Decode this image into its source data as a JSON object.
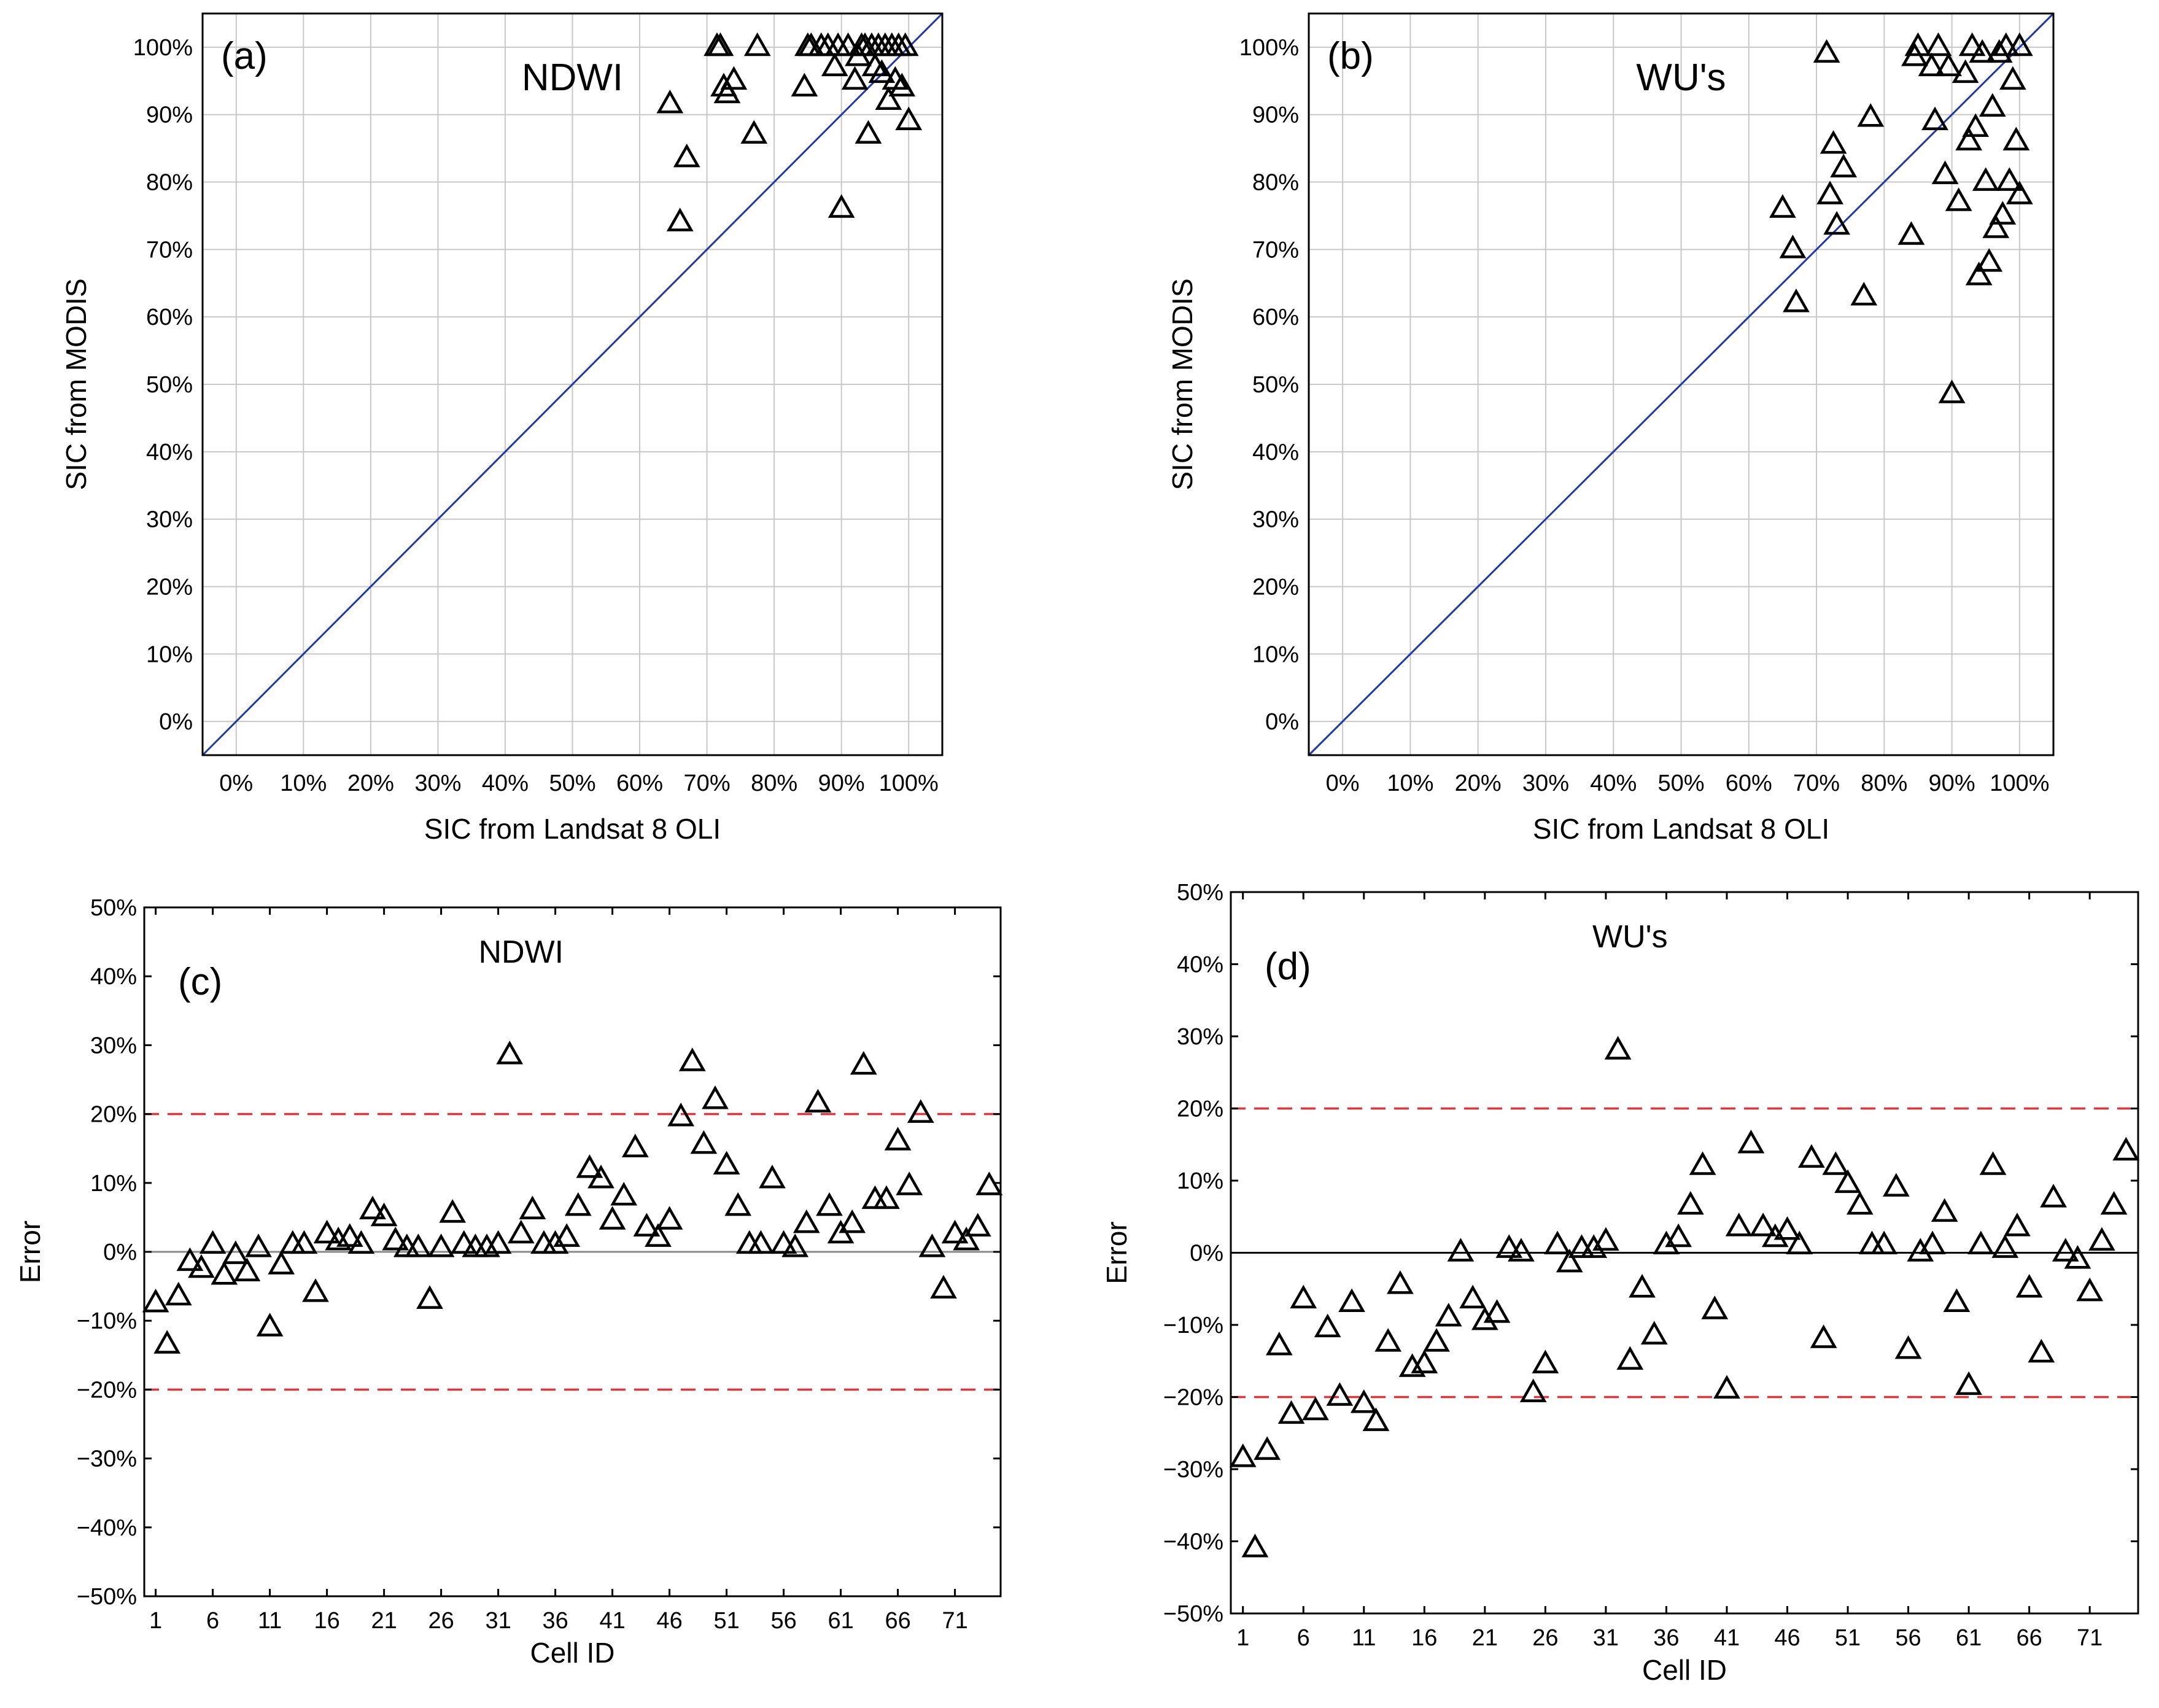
{
  "chart_data": [
    {
      "panel": "a",
      "type": "scatter",
      "panel_label": "(a)",
      "method": "NDWI",
      "xlabel": "SIC from Landsat 8 OLI",
      "ylabel": "SIC from MODIS",
      "xlim": [
        -5,
        105
      ],
      "ylim": [
        -5,
        105
      ],
      "xticks": [
        "0%",
        "10%",
        "20%",
        "30%",
        "40%",
        "50%",
        "60%",
        "70%",
        "80%",
        "90%",
        "100%"
      ],
      "yticks": [
        "0%",
        "10%",
        "20%",
        "30%",
        "40%",
        "50%",
        "60%",
        "70%",
        "80%",
        "90%",
        "100%"
      ],
      "reference_line": "1:1",
      "x": [
        64.5,
        66,
        67,
        71.5,
        72,
        72.5,
        73,
        74,
        77,
        77.5,
        84.5,
        85,
        85.5,
        87,
        88,
        89,
        89.5,
        90,
        91,
        92,
        92.5,
        93,
        93.5,
        94,
        94.5,
        95,
        95.5,
        96,
        96.5,
        97,
        97.5,
        98,
        98.5,
        99,
        99.5,
        100
      ],
      "y": [
        91.5,
        74,
        83.5,
        100,
        100,
        94,
        93,
        95,
        87,
        100,
        94,
        100,
        100,
        100,
        100,
        97,
        100,
        76,
        100,
        95,
        98.5,
        100,
        100,
        87,
        100,
        97,
        100,
        96,
        100,
        92,
        100,
        95,
        100,
        94,
        100,
        89
      ]
    },
    {
      "panel": "b",
      "type": "scatter",
      "panel_label": "(b)",
      "method": "WU's",
      "xlabel": "SIC from Landsat 8 OLI",
      "ylabel": "SIC from MODIS",
      "xlim": [
        -5,
        105
      ],
      "ylim": [
        -5,
        105
      ],
      "xticks": [
        "0%",
        "10%",
        "20%",
        "30%",
        "40%",
        "50%",
        "60%",
        "70%",
        "80%",
        "90%",
        "100%"
      ],
      "yticks": [
        "0%",
        "10%",
        "20%",
        "30%",
        "40%",
        "50%",
        "60%",
        "70%",
        "80%",
        "90%",
        "100%"
      ],
      "reference_line": "1:1",
      "x": [
        65,
        66.5,
        67,
        71.5,
        72,
        72.5,
        73,
        74,
        77,
        78,
        84,
        84.5,
        85,
        87,
        87.5,
        88,
        89,
        89.5,
        90,
        91,
        92,
        92.5,
        93,
        93.5,
        94,
        94.5,
        95,
        95.5,
        96,
        96.5,
        97,
        97.5,
        98,
        98.5,
        99,
        99.5,
        100,
        100
      ],
      "y": [
        76,
        70,
        62,
        99,
        78,
        85.5,
        73.5,
        82,
        63,
        89.5,
        72,
        98.5,
        100,
        97,
        89,
        100,
        81,
        97,
        48.5,
        77,
        96,
        86,
        100,
        88,
        66,
        99,
        80,
        68,
        91,
        73,
        99,
        75,
        100,
        80,
        95,
        86,
        100,
        78
      ]
    },
    {
      "panel": "c",
      "type": "scatter",
      "panel_label": "(c)",
      "method": "NDWI",
      "xlabel": "Cell ID",
      "ylabel": "Error",
      "xlim": [
        0,
        75
      ],
      "ylim": [
        -50,
        50
      ],
      "xticks": [
        "1",
        "6",
        "11",
        "16",
        "21",
        "26",
        "31",
        "36",
        "41",
        "46",
        "51",
        "56",
        "61",
        "66",
        "71"
      ],
      "yticks": [
        "−50%",
        "−40%",
        "−30%",
        "−20%",
        "−10%",
        "0%",
        "10%",
        "20%",
        "30%",
        "40%",
        "50%"
      ],
      "threshold_lines": [
        20,
        -20
      ],
      "zero_line": 0,
      "x": [
        1,
        2,
        3,
        4,
        5,
        6,
        7,
        8,
        9,
        10,
        11,
        12,
        13,
        14,
        15,
        16,
        17,
        18,
        19,
        20,
        21,
        22,
        23,
        24,
        25,
        26,
        27,
        28,
        29,
        30,
        31,
        32,
        33,
        34,
        35,
        36,
        37,
        38,
        39,
        40,
        41,
        42,
        43,
        44,
        45,
        46,
        47,
        48,
        49,
        50,
        51,
        52,
        53,
        54,
        55,
        56,
        57,
        58,
        59,
        60,
        61,
        62,
        63,
        64,
        65,
        66,
        67,
        68,
        69,
        70,
        71,
        72,
        73,
        74
      ],
      "y": [
        -7.5,
        -13.5,
        -6.5,
        -1.5,
        -2.5,
        1,
        -3.5,
        -0.5,
        -3,
        0.5,
        -11,
        -2,
        1,
        1,
        -6,
        2.5,
        1.5,
        2,
        1,
        6,
        5,
        1.5,
        0.5,
        0.5,
        -7,
        0.5,
        5.5,
        1,
        0.5,
        0.5,
        1,
        28.5,
        2.5,
        6,
        1,
        1,
        2,
        6.5,
        12,
        10.5,
        4.5,
        8,
        15,
        3.5,
        2,
        4.5,
        19.5,
        27.5,
        15.5,
        22,
        12.5,
        6.5,
        1,
        1,
        10.5,
        1,
        0.5,
        4,
        21.5,
        6.5,
        2.5,
        4,
        27,
        7.5,
        7.5,
        16,
        9.5,
        20,
        0.5,
        -5.5,
        2.5,
        1.5,
        3.5,
        9.5
      ]
    },
    {
      "panel": "d",
      "type": "scatter",
      "panel_label": "(d)",
      "method": "WU's",
      "xlabel": "Cell ID",
      "ylabel": "Error",
      "xlim": [
        0,
        75
      ],
      "ylim": [
        -50,
        50
      ],
      "xticks": [
        "1",
        "6",
        "11",
        "16",
        "21",
        "26",
        "31",
        "36",
        "41",
        "46",
        "51",
        "56",
        "61",
        "66",
        "71"
      ],
      "yticks": [
        "−50%",
        "−40%",
        "−30%",
        "−20%",
        "−10%",
        "0%",
        "10%",
        "20%",
        "30%",
        "40%",
        "50%"
      ],
      "threshold_lines": [
        20,
        -20
      ],
      "zero_line": 0,
      "x": [
        1,
        2,
        3,
        4,
        5,
        6,
        7,
        8,
        9,
        10,
        11,
        12,
        13,
        14,
        15,
        16,
        17,
        18,
        19,
        20,
        21,
        22,
        23,
        24,
        25,
        26,
        27,
        28,
        29,
        30,
        31,
        32,
        33,
        34,
        35,
        36,
        37,
        38,
        39,
        40,
        41,
        42,
        43,
        44,
        45,
        46,
        47,
        48,
        49,
        50,
        51,
        52,
        53,
        54,
        55,
        56,
        57,
        58,
        59,
        60,
        61,
        62,
        63,
        64,
        65,
        66,
        67,
        68,
        69,
        70,
        71,
        72,
        73,
        74
      ],
      "y": [
        -28.5,
        -41,
        -27.5,
        -13,
        -22.5,
        -6.5,
        -22,
        -10.5,
        -20,
        -7,
        -21,
        -23.5,
        -12.5,
        -4.5,
        -16,
        -15.5,
        -12.5,
        -9,
        0,
        -6.5,
        -9.5,
        -8.5,
        0.5,
        0,
        -19.5,
        -15.5,
        1,
        -1.5,
        0.5,
        0.5,
        1.5,
        28,
        -15,
        -5,
        -11.5,
        1,
        2,
        6.5,
        12,
        -8,
        -19,
        3.5,
        15,
        3.5,
        2,
        3,
        1,
        13,
        -12,
        12,
        9.5,
        6.5,
        1,
        1,
        9,
        -13.5,
        0,
        1,
        5.5,
        -7,
        -18.5,
        1,
        12,
        0.5,
        3.5,
        -5,
        -14,
        7.5,
        0,
        -1,
        -5.5,
        1.5,
        6.5,
        14
      ]
    }
  ]
}
